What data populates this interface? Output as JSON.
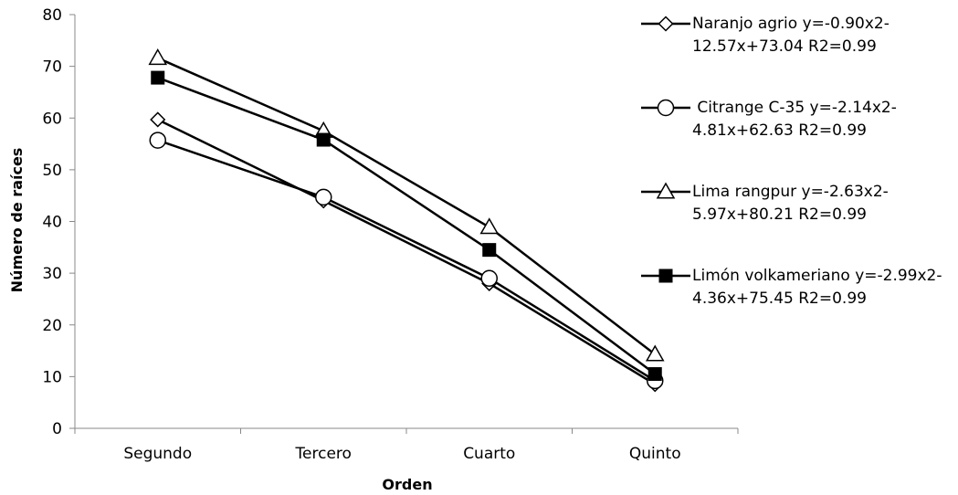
{
  "chart_data": {
    "type": "line",
    "categories": [
      "Segundo",
      "Tercero",
      "Cuarto",
      "Quinto"
    ],
    "xlabel": "Orden",
    "ylabel": "Número de raíces",
    "ylim": [
      0,
      80
    ],
    "yticks": [
      0,
      10,
      20,
      30,
      40,
      50,
      60,
      70,
      80
    ],
    "grid": false,
    "legend_position": "right",
    "series": [
      {
        "name": "Naranjo agrio y=-0.90x2-12.57x+73.04 R2=0.99",
        "marker": "diamond-open",
        "values": [
          59.7,
          44,
          28,
          8.5
        ]
      },
      {
        "name": " Citrange C-35 y=-2.14x2-4.81x+62.63 R2=0.99",
        "marker": "circle-open",
        "values": [
          55.7,
          44.7,
          29,
          9.2
        ]
      },
      {
        "name": "Lima rangpur y=-2.63x2-5.97x+80.21 R2=0.99",
        "marker": "triangle-open",
        "values": [
          71.6,
          57.5,
          38.9,
          14.3
        ]
      },
      {
        "name": "Limón volkameriano y=-2.99x2-4.36x+75.45 R2=0.99",
        "marker": "square-filled",
        "values": [
          67.8,
          55.8,
          34.5,
          10.5
        ]
      }
    ]
  }
}
